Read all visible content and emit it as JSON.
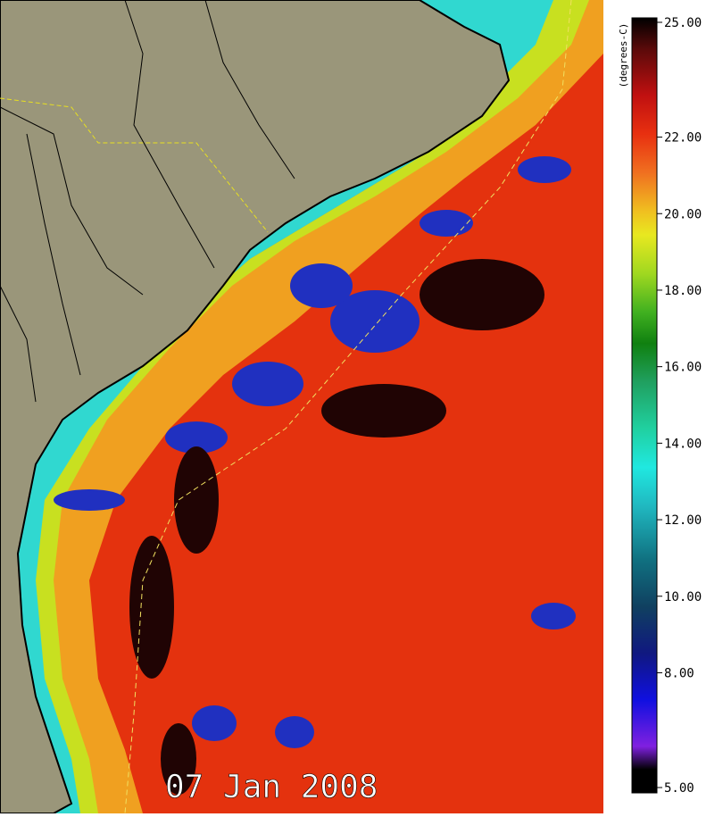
{
  "map": {
    "date": "07 Jan 2008"
  },
  "colorbar": {
    "label": "(degrees-C)",
    "lim": [
      5,
      25
    ],
    "ticks": [
      {
        "value": 25,
        "label": "25.00"
      },
      {
        "value": 22,
        "label": "22.00"
      },
      {
        "value": 20,
        "label": "20.00"
      },
      {
        "value": 18,
        "label": "18.00"
      },
      {
        "value": 16,
        "label": "16.00"
      },
      {
        "value": 14,
        "label": "14.00"
      },
      {
        "value": 12,
        "label": "12.00"
      },
      {
        "value": 10,
        "label": "10.00"
      },
      {
        "value": 8,
        "label": "8.00"
      },
      {
        "value": 5,
        "label": "5.00"
      }
    ]
  }
}
